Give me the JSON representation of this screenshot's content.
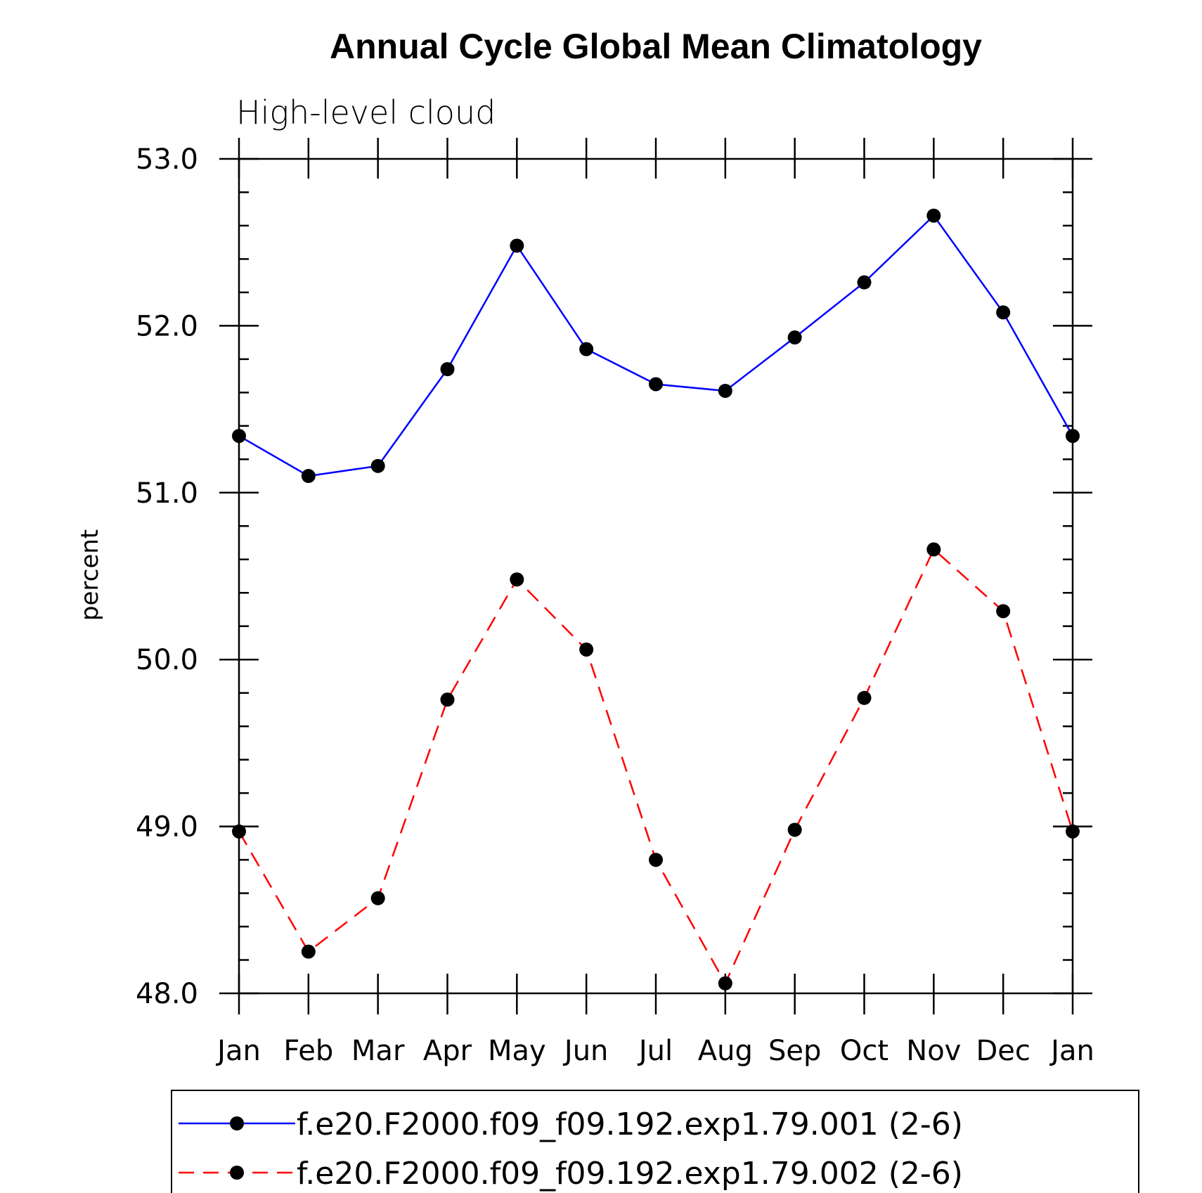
{
  "chart_data": {
    "type": "line",
    "title": "Annual Cycle Global Mean Climatology",
    "subtitle": "High-level cloud",
    "xlabel": "",
    "ylabel": "percent",
    "categories": [
      "Jan",
      "Feb",
      "Mar",
      "Apr",
      "May",
      "Jun",
      "Jul",
      "Aug",
      "Sep",
      "Oct",
      "Nov",
      "Dec",
      "Jan"
    ],
    "ylim": [
      48.0,
      53.0
    ],
    "yticks": [
      "48.0",
      "49.0",
      "50.0",
      "51.0",
      "52.0",
      "53.0"
    ],
    "legend_position": "bottom",
    "series": [
      {
        "name": "f.e20.F2000.f09_f09.192.exp1.79.001 (2-6)",
        "color": "#0000ff",
        "dashed": false,
        "values": [
          51.34,
          51.1,
          51.16,
          51.74,
          52.48,
          51.86,
          51.65,
          51.61,
          51.93,
          52.26,
          52.66,
          52.08,
          51.34
        ]
      },
      {
        "name": "f.e20.F2000.f09_f09.192.exp1.79.002 (2-6)",
        "color": "#ff0000",
        "dashed": true,
        "values": [
          48.97,
          48.25,
          48.57,
          49.76,
          50.48,
          50.06,
          48.8,
          48.06,
          48.98,
          49.77,
          50.66,
          50.29,
          48.97
        ]
      }
    ]
  }
}
